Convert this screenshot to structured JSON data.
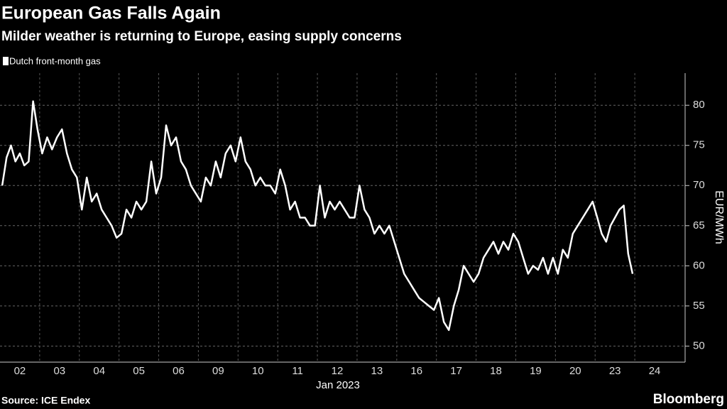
{
  "chart_data": {
    "type": "line",
    "title": "European Gas Falls Again",
    "subtitle": "Milder weather is returning to Europe, easing supply concerns",
    "x_label": "Jan 2023",
    "y_label": "EUR/MWh",
    "source": "Source: ICE Endex",
    "brand": "Bloomberg",
    "categories": [
      "02",
      "03",
      "04",
      "05",
      "06",
      "09",
      "10",
      "11",
      "12",
      "13",
      "16",
      "17",
      "18",
      "19",
      "20",
      "23",
      "24"
    ],
    "series": [
      {
        "name": "Dutch front-month gas",
        "color": "#ffffff",
        "values": [
          [
            70,
            73.5,
            75,
            73,
            74,
            72.5,
            73,
            80.5,
            77
          ],
          [
            74,
            76,
            74.5,
            76,
            77,
            74,
            72,
            71
          ],
          [
            67,
            71,
            68,
            69,
            67,
            66,
            65,
            63.5
          ],
          [
            64,
            67,
            66,
            68,
            67,
            68,
            73,
            69
          ],
          [
            71,
            77.5,
            75,
            76,
            73,
            72,
            70,
            69
          ],
          [
            68,
            71,
            70,
            73,
            71,
            74,
            75,
            73
          ],
          [
            76,
            73,
            72,
            70,
            71,
            70,
            70,
            69
          ],
          [
            72,
            70,
            67,
            68,
            66,
            66,
            65,
            65
          ],
          [
            70,
            66,
            68,
            67,
            68,
            67,
            66,
            66
          ],
          [
            70,
            67,
            66,
            64,
            65,
            64,
            65,
            63
          ],
          [
            61,
            59,
            58,
            57,
            56,
            55.5,
            55,
            54.5
          ],
          [
            56,
            53,
            52,
            55,
            57,
            60,
            59,
            58
          ],
          [
            59,
            61,
            62,
            63,
            61.5,
            63,
            62,
            64
          ],
          [
            63,
            61,
            59,
            60,
            59.5,
            61,
            59,
            61
          ],
          [
            59,
            62,
            61,
            64,
            65,
            66,
            67,
            68
          ],
          [
            66,
            64,
            63,
            65,
            66,
            67,
            67.5,
            61.5,
            59
          ],
          []
        ]
      }
    ],
    "ylim": [
      48,
      84
    ],
    "yticks": [
      50,
      55,
      60,
      65,
      70,
      75,
      80
    ],
    "grid": true
  }
}
